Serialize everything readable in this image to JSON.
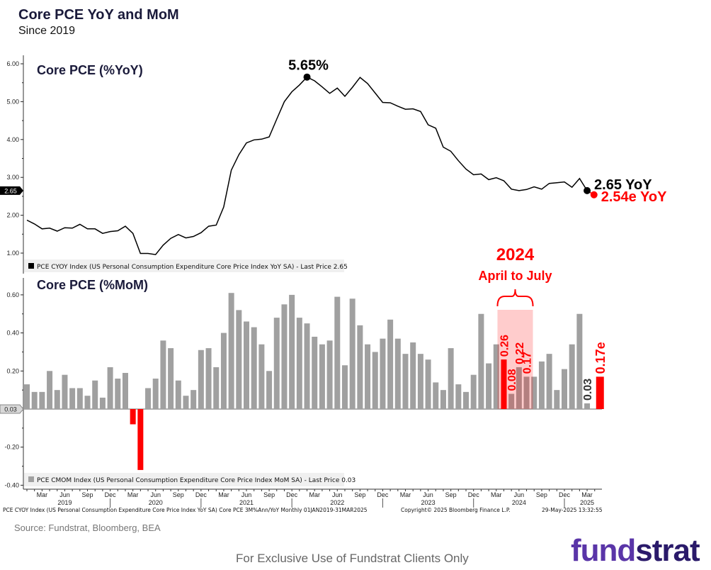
{
  "header": {
    "title": "Core PCE YoY and MoM",
    "subtitle": "Since 2019"
  },
  "footer": {
    "source": "Source: Fundstrat, Bloomberg, BEA",
    "disclaimer": "For Exclusive Use of Fundstrat Clients Only",
    "logo_text": "fundstrat",
    "bloomberg_note": "PCE CYOY Index (US Personal Consumption Expenditure Core Price Index YoY SA) Core PCE 3M%Ann/YoY  Monthly 01JAN2019-31MAR2025",
    "copyright": "Copyright© 2025 Bloomberg Finance L.P.",
    "timestamp": "29-May-2025 13:32:55"
  },
  "colors": {
    "line": "#000000",
    "bar": "#a0a0a0",
    "highlight": "#ff0000",
    "highlight_band": "#ffcccc",
    "title": "#1a1a3a"
  },
  "chart_data": [
    {
      "type": "line",
      "title": "Core PCE (%YoY)",
      "legend": "PCE CYOY Index (US Personal Consumption Expenditure Core Price Index YoY SA) - Last Price 2.65",
      "last_value_tag": "2.65",
      "ylim": [
        0.8,
        6.2
      ],
      "y_ticks": [
        "1.00",
        "2.00",
        "3.00",
        "4.00",
        "5.00",
        "6.00"
      ],
      "y_tick_values": [
        1,
        2,
        3,
        4,
        5,
        6
      ],
      "start": "Jan 2019",
      "values": [
        1.87,
        1.77,
        1.64,
        1.66,
        1.58,
        1.67,
        1.66,
        1.76,
        1.64,
        1.64,
        1.52,
        1.57,
        1.59,
        1.71,
        1.52,
        0.99,
        0.99,
        0.96,
        1.21,
        1.39,
        1.49,
        1.4,
        1.44,
        1.54,
        1.71,
        1.74,
        2.22,
        3.19,
        3.6,
        3.91,
        3.99,
        4.01,
        4.07,
        4.54,
        5.0,
        5.26,
        5.44,
        5.65,
        5.55,
        5.39,
        5.22,
        5.36,
        5.14,
        5.38,
        5.64,
        5.48,
        5.23,
        4.98,
        4.97,
        4.88,
        4.8,
        4.81,
        4.74,
        4.39,
        4.3,
        3.8,
        3.69,
        3.44,
        3.22,
        3.07,
        3.09,
        2.94,
        2.99,
        2.91,
        2.69,
        2.65,
        2.68,
        2.75,
        2.69,
        2.84,
        2.86,
        2.88,
        2.74,
        2.97,
        2.65
      ],
      "estimate": {
        "index": 75,
        "value": 2.54,
        "label": "2.54e YoY"
      },
      "annotations": {
        "peak": {
          "index": 37,
          "value": 5.65,
          "label": "5.65%"
        },
        "last": {
          "index": 74,
          "value": 2.65,
          "label": "2.65 YoY"
        }
      }
    },
    {
      "type": "bar",
      "title": "Core PCE (%MoM)",
      "legend": "PCE CMOM Index (US Personal Consumption Expenditure Core Price Index MoM SA) - Last Price 0.03",
      "last_value_tag": "0.03",
      "ylim": [
        -0.42,
        0.66
      ],
      "y_ticks": [
        "-0.40",
        "-0.20",
        "0.00",
        "0.20",
        "0.40",
        "0.60"
      ],
      "y_tick_values": [
        -0.4,
        -0.2,
        0,
        0.2,
        0.4,
        0.6
      ],
      "values": [
        0.13,
        0.09,
        0.09,
        0.2,
        0.1,
        0.18,
        0.11,
        0.11,
        0.07,
        0.15,
        0.06,
        0.22,
        0.16,
        0.19,
        -0.08,
        -0.32,
        0.11,
        0.16,
        0.36,
        0.32,
        0.15,
        0.07,
        0.1,
        0.31,
        0.32,
        0.22,
        0.4,
        0.61,
        0.52,
        0.46,
        0.43,
        0.34,
        0.2,
        0.48,
        0.55,
        0.6,
        0.48,
        0.45,
        0.38,
        0.34,
        0.36,
        0.59,
        0.23,
        0.58,
        0.44,
        0.34,
        0.3,
        0.37,
        0.47,
        0.37,
        0.29,
        0.35,
        0.29,
        0.26,
        0.14,
        0.1,
        0.32,
        0.13,
        0.09,
        0.18,
        0.5,
        0.24,
        0.34,
        0.26,
        0.08,
        0.22,
        0.17,
        0.17,
        0.25,
        0.29,
        0.1,
        0.21,
        0.34,
        0.5,
        0.03
      ],
      "red_indices": [
        14,
        15,
        63
      ],
      "value_labels": [
        {
          "index": 63,
          "label": "0.26",
          "color": "red"
        },
        {
          "index": 64,
          "label": "0.08",
          "color": "red"
        },
        {
          "index": 65,
          "label": "0.22",
          "color": "red"
        },
        {
          "index": 66,
          "label": "0.17",
          "color": "red"
        },
        {
          "index": 74,
          "label": "0.03",
          "color": "dark"
        }
      ],
      "estimate": {
        "index": 75,
        "value": 0.17,
        "label": "0.17e"
      },
      "highlight": {
        "from_index": 63,
        "to_index": 66,
        "title": "2024",
        "subtitle": "April to July"
      }
    }
  ],
  "x_axis": {
    "month_labels": [
      "Mar",
      "Jun",
      "Sep",
      "Dec"
    ],
    "years": [
      "2019",
      "2020",
      "2021",
      "2022",
      "2023",
      "2024",
      "2025"
    ]
  }
}
